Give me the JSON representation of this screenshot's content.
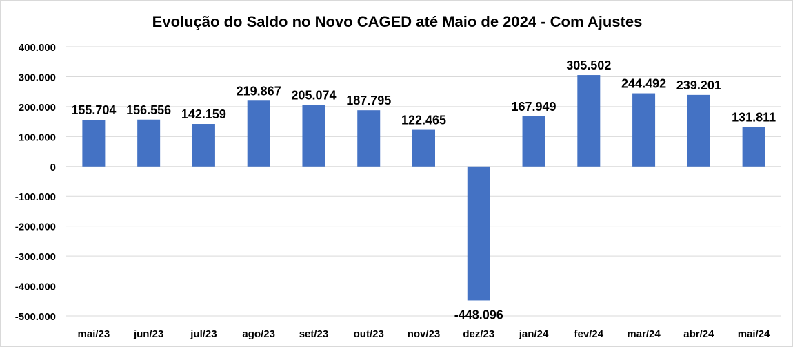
{
  "chart_data": {
    "type": "bar",
    "title": "Evolução do Saldo no Novo CAGED até Maio de 2024 - Com Ajustes",
    "xlabel": "",
    "ylabel": "",
    "categories": [
      "mai/23",
      "jun/23",
      "jul/23",
      "ago/23",
      "set/23",
      "out/23",
      "nov/23",
      "dez/23",
      "jan/24",
      "fev/24",
      "mar/24",
      "abr/24",
      "mai/24"
    ],
    "values": [
      155704,
      156556,
      142159,
      219867,
      205074,
      187795,
      122465,
      -448096,
      167949,
      305502,
      244492,
      239201,
      131811
    ],
    "data_labels": [
      "155.704",
      "156.556",
      "142.159",
      "219.867",
      "205.074",
      "187.795",
      "122.465",
      "-448.096",
      "167.949",
      "305.502",
      "244.492",
      "239.201",
      "131.811"
    ],
    "ylim": [
      -500000,
      400000
    ],
    "yticks": [
      400000,
      300000,
      200000,
      100000,
      0,
      -100000,
      -200000,
      -300000,
      -400000,
      -500000
    ],
    "ytick_labels": [
      "400.000",
      "300.000",
      "200.000",
      "100.000",
      "0",
      "-100.000",
      "-200.000",
      "-300.000",
      "-400.000",
      "-500.000"
    ],
    "grid": true,
    "legend": "none",
    "bar_color": "#4472C4"
  }
}
